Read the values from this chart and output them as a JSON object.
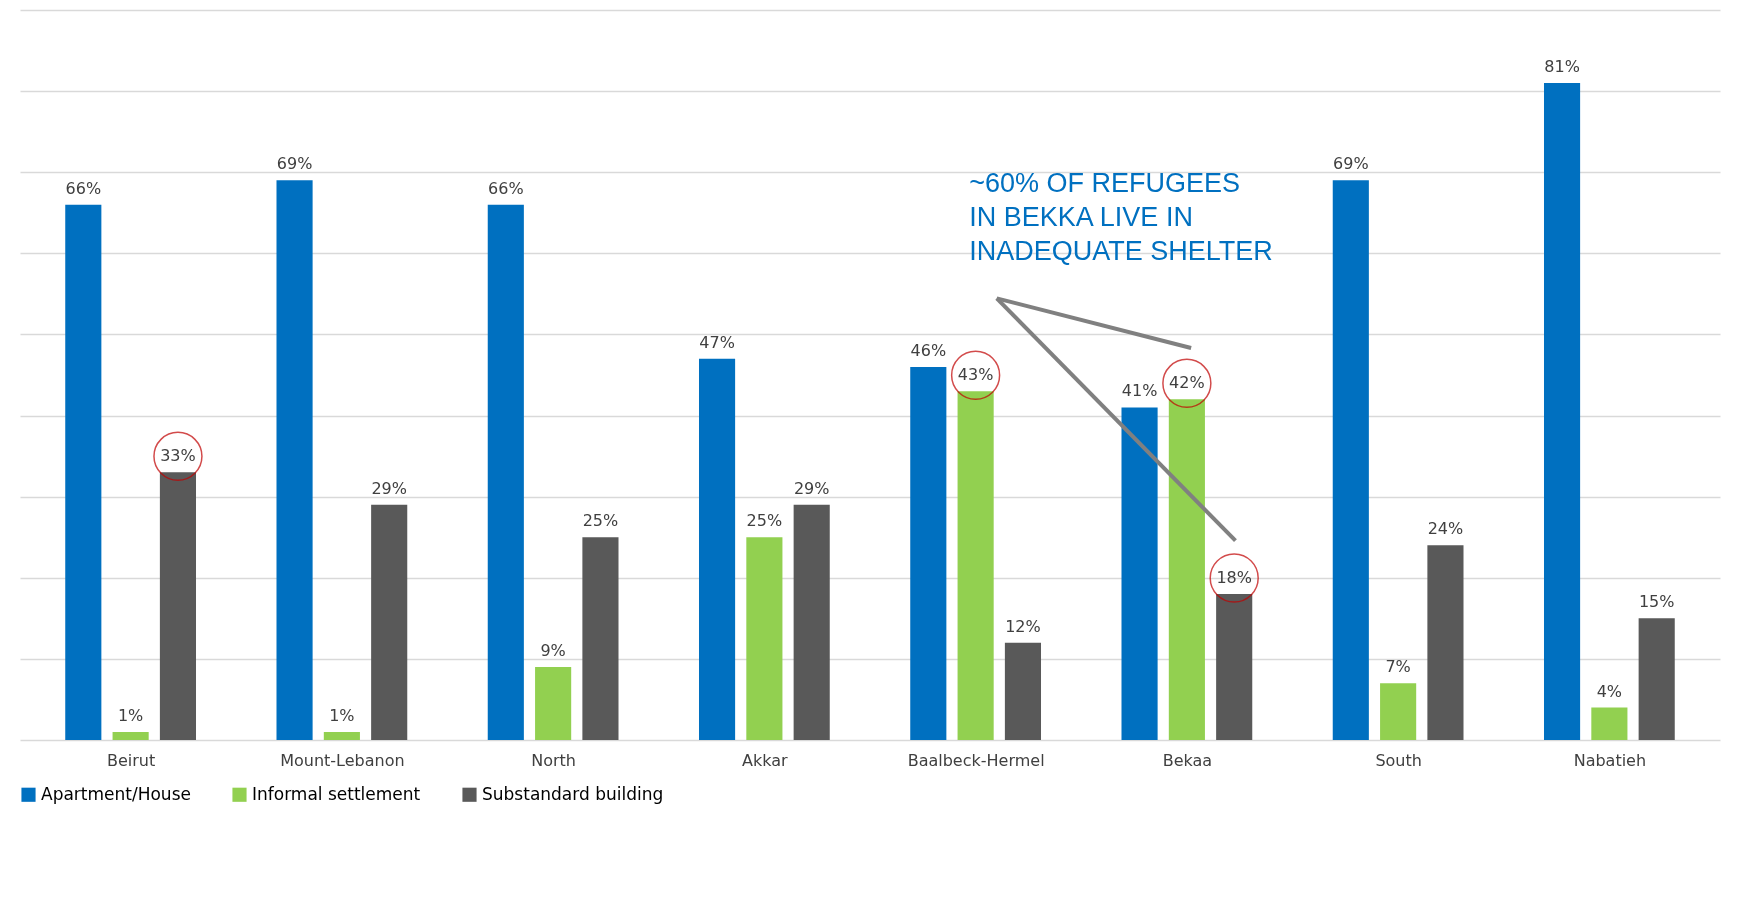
{
  "chart_data": {
    "type": "bar",
    "categories": [
      "Beirut",
      "Mount-Lebanon",
      "North",
      "Akkar",
      "Baalbeck-Hermel",
      "Bekaa",
      "South",
      "Nabatieh"
    ],
    "series": [
      {
        "name": "Apartment/House",
        "color": "#0070c0",
        "values": [
          66,
          69,
          66,
          47,
          46,
          41,
          69,
          81
        ],
        "value_labels": [
          "66%",
          "69%",
          "66%",
          "47%",
          "46%",
          "41%",
          "69%",
          "81%"
        ]
      },
      {
        "name": "Informal settlement",
        "color": "#92d050",
        "values": [
          1,
          1,
          9,
          25,
          43,
          42,
          7,
          4
        ],
        "value_labels": [
          "1%",
          "1%",
          "9%",
          "25%",
          "43%",
          "42%",
          "7%",
          "4%"
        ]
      },
      {
        "name": "Substandard building",
        "color": "#595959",
        "values": [
          33,
          29,
          25,
          29,
          12,
          18,
          24,
          15
        ],
        "value_labels": [
          "33%",
          "29%",
          "25%",
          "29%",
          "12%",
          "18%",
          "24%",
          "15%"
        ]
      }
    ],
    "grid": "y",
    "legend": "bottom",
    "annotations": [
      "~60% OF REFUGEES IN BEKKA LIVE IN INADEQUATE SHELTER"
    ]
  }
}
